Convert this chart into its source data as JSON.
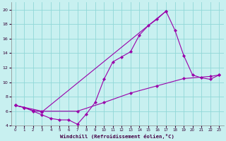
{
  "xlabel": "Windchill (Refroidissement éolien,°C)",
  "bg_color": "#c8f0f0",
  "line_color": "#9900aa",
  "grid_color": "#90d8d8",
  "xlim": [
    -0.5,
    23.5
  ],
  "ylim": [
    4,
    21
  ],
  "xticks": [
    0,
    1,
    2,
    3,
    4,
    5,
    6,
    7,
    8,
    9,
    10,
    11,
    12,
    13,
    14,
    15,
    16,
    17,
    18,
    19,
    20,
    21,
    22,
    23
  ],
  "yticks": [
    4,
    6,
    8,
    10,
    12,
    14,
    16,
    18,
    20
  ],
  "line1_x": [
    0,
    1,
    2,
    3,
    4,
    5,
    6,
    7,
    8,
    9,
    10,
    11,
    12,
    13,
    14,
    15,
    16,
    17
  ],
  "line1_y": [
    6.8,
    6.5,
    6.0,
    5.5,
    5.0,
    4.8,
    4.8,
    4.2,
    5.6,
    7.2,
    10.4,
    12.8,
    13.5,
    14.2,
    16.5,
    17.8,
    18.7,
    19.8
  ],
  "line2_x": [
    0,
    1,
    2,
    3,
    17,
    18,
    19,
    20,
    21,
    22,
    23
  ],
  "line2_y": [
    6.8,
    6.5,
    6.1,
    5.9,
    19.8,
    17.2,
    13.7,
    11.0,
    10.6,
    10.4,
    11.0
  ],
  "line3_x": [
    0,
    3,
    7,
    10,
    13,
    16,
    19,
    22,
    23
  ],
  "line3_y": [
    6.8,
    6.0,
    6.0,
    7.2,
    8.5,
    9.5,
    10.5,
    10.8,
    11.0
  ]
}
